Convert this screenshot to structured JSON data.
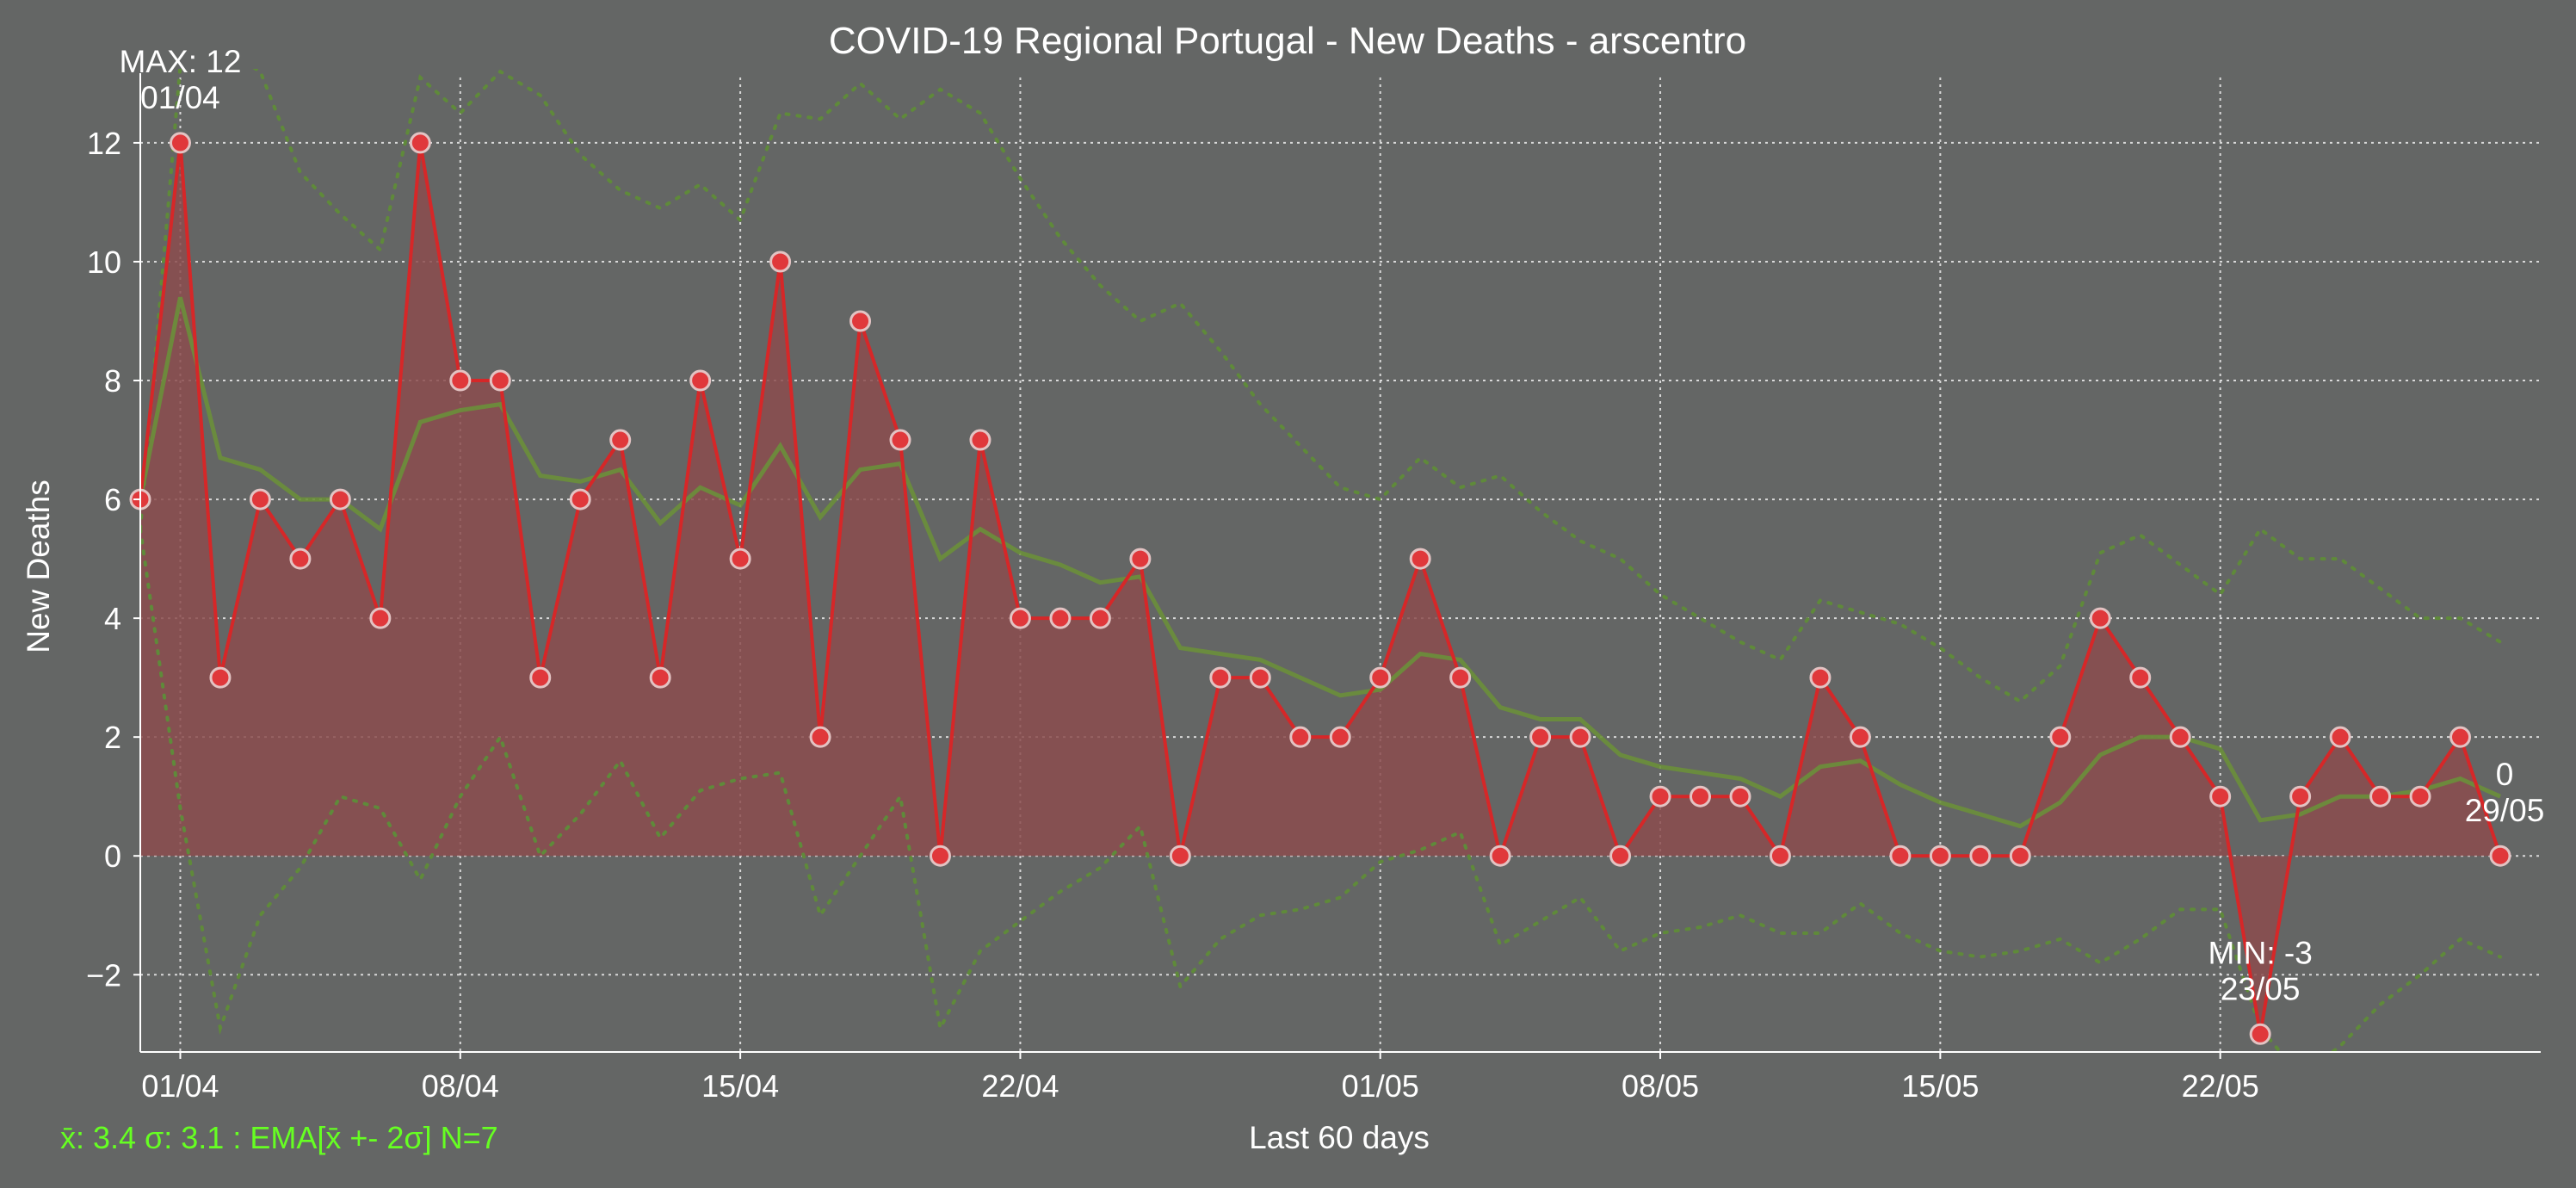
{
  "colors": {
    "background": "#646665",
    "line": "#d62728",
    "fill": "#8b4c4d",
    "marker_fill": "#e0383b",
    "marker_edge": "#e3c3c3",
    "ema": "#6a8f3a",
    "band": "#5f8a3a",
    "text": "#ffffff",
    "stats_text": "#66ff22",
    "grid": "#e6e6e6"
  },
  "chart_data": {
    "type": "area",
    "title": "COVID-19 Regional Portugal - New Deaths - arscentro",
    "xlabel": "Last 60 days",
    "ylabel": "New Deaths",
    "ylim": [
      -3.3,
      13.1
    ],
    "yticks": [
      -2,
      0,
      2,
      4,
      6,
      8,
      10,
      12
    ],
    "ytick_labels": [
      "−2",
      "0",
      "2",
      "4",
      "6",
      "8",
      "10",
      "12"
    ],
    "xticks": [
      {
        "index": 1,
        "label": "01/04"
      },
      {
        "index": 8,
        "label": "08/04"
      },
      {
        "index": 15,
        "label": "15/04"
      },
      {
        "index": 22,
        "label": "22/04"
      },
      {
        "index": 31,
        "label": "01/05"
      },
      {
        "index": 38,
        "label": "08/05"
      },
      {
        "index": 45,
        "label": "15/05"
      },
      {
        "index": 52,
        "label": "22/05"
      }
    ],
    "grid": true,
    "start_date": "31/03",
    "end_date": "29/05",
    "series": [
      {
        "values": [
          6,
          12,
          3,
          6,
          5,
          6,
          4,
          12,
          8,
          8,
          3,
          6,
          7,
          3,
          8,
          5,
          10,
          2,
          9,
          7,
          0,
          7,
          4,
          4,
          4,
          5,
          0,
          3,
          3,
          2,
          2,
          3,
          5,
          3,
          0,
          2,
          2,
          0,
          1,
          1,
          1,
          0,
          3,
          2,
          0,
          0,
          0,
          0,
          2,
          4,
          3,
          2,
          1,
          -3,
          1,
          2,
          1,
          1,
          2,
          0
        ]
      },
      {
        "values": [
          6.0,
          9.4,
          6.7,
          6.5,
          6.0,
          6.0,
          5.5,
          7.3,
          7.5,
          7.6,
          6.4,
          6.3,
          6.5,
          5.6,
          6.2,
          5.9,
          6.9,
          5.7,
          6.5,
          6.6,
          5.0,
          5.5,
          5.1,
          4.9,
          4.6,
          4.7,
          3.5,
          3.4,
          3.3,
          3.0,
          2.7,
          2.8,
          3.4,
          3.3,
          2.5,
          2.3,
          2.3,
          1.7,
          1.5,
          1.4,
          1.3,
          1.0,
          1.5,
          1.6,
          1.2,
          0.9,
          0.7,
          0.5,
          0.9,
          1.7,
          2.0,
          2.0,
          1.8,
          0.6,
          0.7,
          1.0,
          1.0,
          1.1,
          1.3,
          1.0
        ]
      },
      {
        "values": [
          5.5,
          13.3,
          13.6,
          13.2,
          11.5,
          10.8,
          10.2,
          13.1,
          12.5,
          13.2,
          12.8,
          11.8,
          11.2,
          10.9,
          11.3,
          10.7,
          12.5,
          12.4,
          13.0,
          12.4,
          12.9,
          12.5,
          11.4,
          10.4,
          9.6,
          9.0,
          9.3,
          8.5,
          7.6,
          6.9,
          6.2,
          6.0,
          6.7,
          6.2,
          6.4,
          5.8,
          5.3,
          5.0,
          4.4,
          4.0,
          3.6,
          3.3,
          4.3,
          4.1,
          3.9,
          3.5,
          3.0,
          2.6,
          3.2,
          5.1,
          5.4,
          4.9,
          4.4,
          5.5,
          5.0,
          5.0,
          4.5,
          4.0,
          4.0,
          3.6
        ]
      },
      {
        "values": [
          5.5,
          0.8,
          -2.9,
          -1.0,
          -0.2,
          1.0,
          0.8,
          -0.4,
          1.0,
          2.0,
          0.0,
          0.7,
          1.6,
          0.3,
          1.1,
          1.3,
          1.4,
          -1.0,
          0.0,
          1.0,
          -2.9,
          -1.6,
          -1.1,
          -0.6,
          -0.2,
          0.5,
          -2.2,
          -1.4,
          -1.0,
          -0.9,
          -0.7,
          -0.1,
          0.1,
          0.4,
          -1.5,
          -1.1,
          -0.7,
          -1.6,
          -1.3,
          -1.2,
          -1.0,
          -1.3,
          -1.3,
          -0.8,
          -1.3,
          -1.6,
          -1.7,
          -1.6,
          -1.4,
          -1.8,
          -1.4,
          -0.9,
          -0.9,
          -2.9,
          -3.7,
          -3.2,
          -2.5,
          -2.0,
          -1.4,
          -1.7
        ]
      }
    ],
    "annotations": [
      {
        "index": 1,
        "value": 12,
        "lines": [
          "MAX: 12",
          "01/04"
        ],
        "placement": "above"
      },
      {
        "index": 53,
        "value": -3,
        "lines": [
          "MIN: -3",
          "23/05"
        ],
        "placement": "above"
      },
      {
        "index": 59,
        "value": 0,
        "lines": [
          "0",
          "29/05"
        ],
        "placement": "above"
      }
    ],
    "stats_text": "x̄: 3.4 σ: 3.1 : EMA[x̄ +- 2σ] N=7"
  }
}
